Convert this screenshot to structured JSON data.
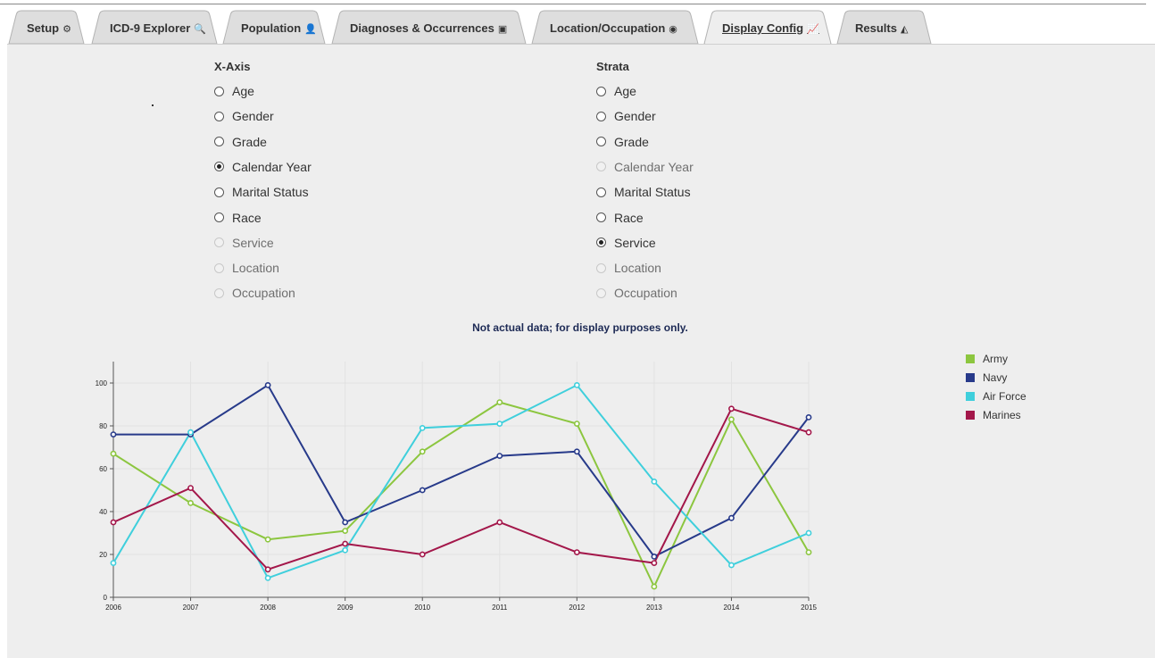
{
  "tabs": [
    {
      "label": "Setup",
      "icon": "cogs-icon",
      "glyph": "⚙"
    },
    {
      "label": "ICD-9 Explorer",
      "icon": "search-icon",
      "glyph": "🔍"
    },
    {
      "label": "Population",
      "icon": "user-icon",
      "glyph": "👤"
    },
    {
      "label": "Diagnoses & Occurrences",
      "icon": "medkit-icon",
      "glyph": "▣"
    },
    {
      "label": "Location/Occupation",
      "icon": "globe-icon",
      "glyph": "◉"
    },
    {
      "label": "Display Config",
      "icon": "line-chart-icon",
      "glyph": "📈",
      "active": true
    },
    {
      "label": "Results",
      "icon": "area-chart-icon",
      "glyph": "◭"
    }
  ],
  "xaxis": {
    "title": "X-Axis",
    "options": [
      {
        "label": "Age",
        "state": "enabled"
      },
      {
        "label": "Gender",
        "state": "enabled"
      },
      {
        "label": "Grade",
        "state": "enabled"
      },
      {
        "label": "Calendar Year",
        "state": "checked"
      },
      {
        "label": "Marital Status",
        "state": "enabled"
      },
      {
        "label": "Race",
        "state": "enabled"
      },
      {
        "label": "Service",
        "state": "disabled"
      },
      {
        "label": "Location",
        "state": "disabled"
      },
      {
        "label": "Occupation",
        "state": "disabled"
      }
    ]
  },
  "strata": {
    "title": "Strata",
    "options": [
      {
        "label": "Age",
        "state": "enabled"
      },
      {
        "label": "Gender",
        "state": "enabled"
      },
      {
        "label": "Grade",
        "state": "enabled"
      },
      {
        "label": "Calendar Year",
        "state": "disabled"
      },
      {
        "label": "Marital Status",
        "state": "enabled"
      },
      {
        "label": "Race",
        "state": "enabled"
      },
      {
        "label": "Service",
        "state": "checked"
      },
      {
        "label": "Location",
        "state": "disabled"
      },
      {
        "label": "Occupation",
        "state": "disabled"
      }
    ]
  },
  "note": "Not actual data; for display purposes only.",
  "chart_data": {
    "type": "line",
    "x": [
      2006,
      2007,
      2008,
      2009,
      2010,
      2011,
      2012,
      2013,
      2014,
      2015
    ],
    "ylim": [
      0,
      110
    ],
    "yticks": [
      0,
      20,
      40,
      60,
      80,
      100
    ],
    "grid": true,
    "legend": "right",
    "series": [
      {
        "name": "Army",
        "color": "#8cc63f",
        "values": [
          67,
          44,
          27,
          31,
          68,
          91,
          81,
          5,
          83,
          21
        ]
      },
      {
        "name": "Navy",
        "color": "#273a8a",
        "values": [
          76,
          76,
          99,
          35,
          50,
          66,
          68,
          19,
          37,
          84
        ]
      },
      {
        "name": "Air Force",
        "color": "#3fcfdc",
        "values": [
          16,
          77,
          9,
          22,
          79,
          81,
          99,
          54,
          15,
          30
        ]
      },
      {
        "name": "Marines",
        "color": "#a3174a",
        "values": [
          35,
          51,
          13,
          25,
          20,
          35,
          21,
          16,
          88,
          77
        ]
      }
    ]
  }
}
